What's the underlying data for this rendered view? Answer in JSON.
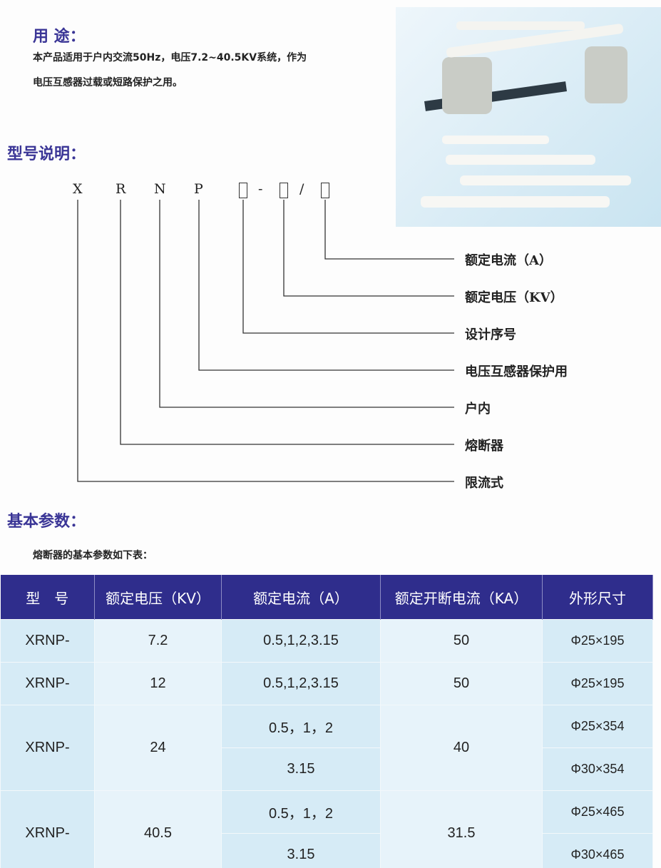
{
  "usage": {
    "title": "用 途：",
    "lines": [
      "本产品适用于户内交流50Hz，电压7.2~40.5KV系统，作为",
      "电压互感器过载或短路保护之用。"
    ]
  },
  "model": {
    "title": "型号说明：",
    "letters": [
      "X",
      "R",
      "N",
      "P"
    ],
    "separators": [
      "-",
      "/"
    ],
    "labels": [
      "额定电流（A）",
      "额定电压（KV）",
      "设计序号",
      "电压互感器保护用",
      "户内",
      "熔断器",
      "限流式"
    ]
  },
  "params": {
    "title": "基本参数：",
    "intro": "熔断器的基本参数如下表：",
    "headers": [
      "型　号",
      "额定电压（KV）",
      "额定电流（A）",
      "额定开断电流（KA）",
      "外形尺寸"
    ],
    "rows": [
      {
        "model": "XRNP-",
        "voltage": "7.2",
        "current": [
          "0.5,1,2,3.15"
        ],
        "breaking": "50",
        "size": [
          "Φ25×195"
        ]
      },
      {
        "model": "XRNP-",
        "voltage": "12",
        "current": [
          "0.5,1,2,3.15"
        ],
        "breaking": "50",
        "size": [
          "Φ25×195"
        ]
      },
      {
        "model": "XRNP-",
        "voltage": "24",
        "current": [
          "0.5，1，2",
          "3.15"
        ],
        "breaking": "40",
        "size": [
          "Φ25×354",
          "Φ30×354"
        ]
      },
      {
        "model": "XRNP-",
        "voltage": "40.5",
        "current": [
          "0.5，1，2",
          "3.15"
        ],
        "breaking": "31.5",
        "size": [
          "Φ25×465",
          "Φ30×465"
        ]
      }
    ]
  },
  "colors": {
    "heading": "#3a3596",
    "table_header": "#2f2d8c",
    "cell_a": "#d6ebf6",
    "cell_b": "#e7f3fa"
  }
}
